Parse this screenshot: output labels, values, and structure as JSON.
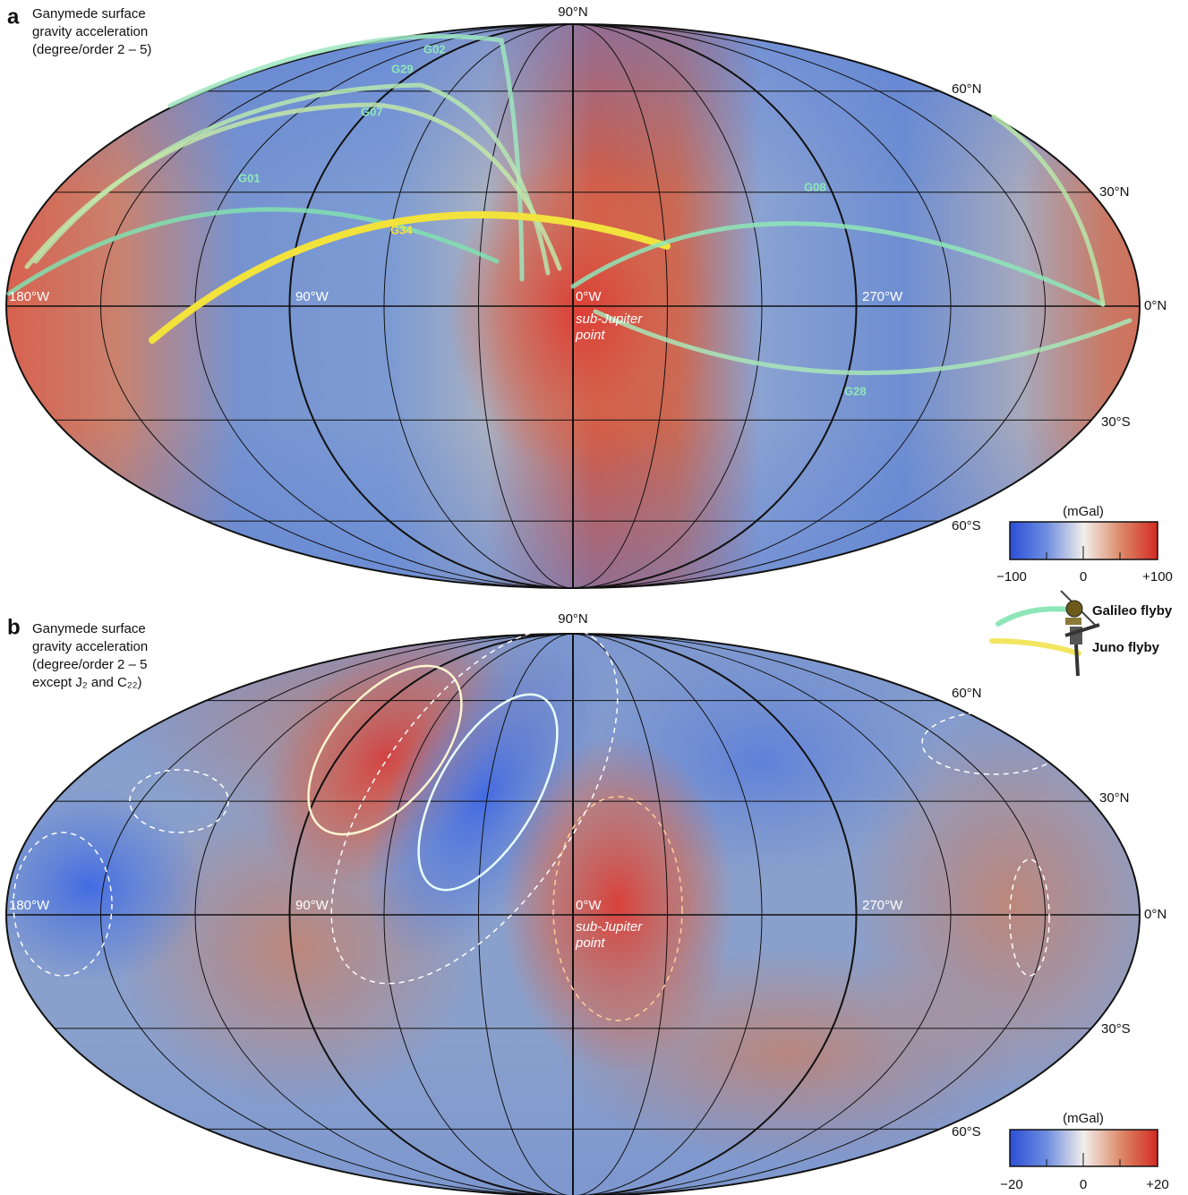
{
  "panels": [
    {
      "label": "a",
      "description": [
        "Ganymede surface",
        "gravity acceleration",
        "(degree/order 2 – 5)"
      ],
      "latitude_labels": [
        "90°N",
        "60°N",
        "30°N",
        "0°N",
        "30°S",
        "60°S"
      ],
      "longitude_labels": [
        "180°W",
        "90°W",
        "0°W",
        "270°W"
      ],
      "sub_jupiter": [
        "sub-Jupiter",
        "point"
      ],
      "flybys": [
        "G02",
        "G29",
        "G07",
        "G01",
        "G34",
        "G08",
        "G28"
      ],
      "colorbar": {
        "unit": "(mGal)",
        "ticks": [
          "−100",
          "0",
          "+100"
        ]
      }
    },
    {
      "label": "b",
      "description": [
        "Ganymede surface",
        "gravity acceleration",
        "(degree/order 2 – 5",
        "except J₂ and C₂₂)"
      ],
      "latitude_labels": [
        "90°N",
        "60°N",
        "30°N",
        "0°N",
        "30°S",
        "60°S"
      ],
      "longitude_labels": [
        "180°W",
        "90°W",
        "0°W",
        "270°W"
      ],
      "sub_jupiter": [
        "sub-Jupiter",
        "point"
      ],
      "colorbar": {
        "unit": "(mGal)",
        "ticks": [
          "−20",
          "0",
          "+20"
        ]
      }
    }
  ],
  "legend": {
    "galileo": "Galileo flyby",
    "juno": "Juno flyby"
  }
}
